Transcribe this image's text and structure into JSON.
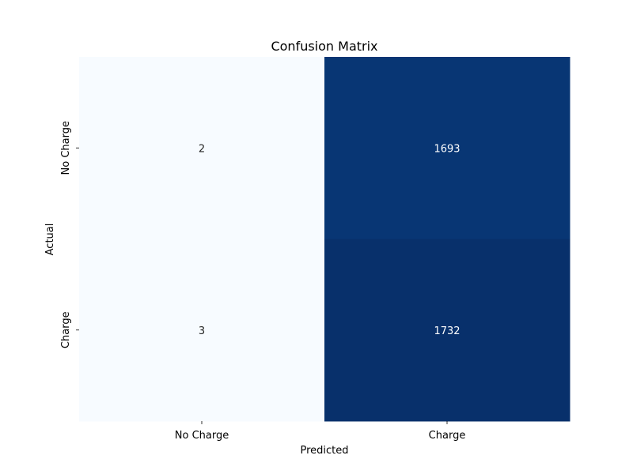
{
  "chart_data": {
    "type": "heatmap",
    "title": "Confusion Matrix",
    "xlabel": "Predicted",
    "ylabel": "Actual",
    "x_categories": [
      "No Charge",
      "Charge"
    ],
    "y_categories": [
      "No Charge",
      "Charge"
    ],
    "values": [
      [
        2,
        1693
      ],
      [
        3,
        1732
      ]
    ],
    "colormap": "Blues",
    "colorbar": false,
    "grid": false
  }
}
